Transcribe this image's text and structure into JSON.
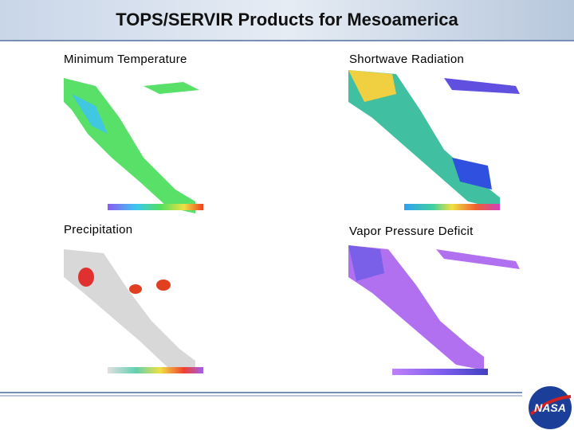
{
  "header": {
    "title": "TOPS/SERVIR Products for Mesoamerica"
  },
  "panels": [
    {
      "label": "Minimum Temperature"
    },
    {
      "label": "Shortwave Radiation"
    },
    {
      "label": "Precipitation"
    },
    {
      "label": "Vapor Pressure Deficit"
    }
  ],
  "logo": {
    "text": "NASA"
  }
}
